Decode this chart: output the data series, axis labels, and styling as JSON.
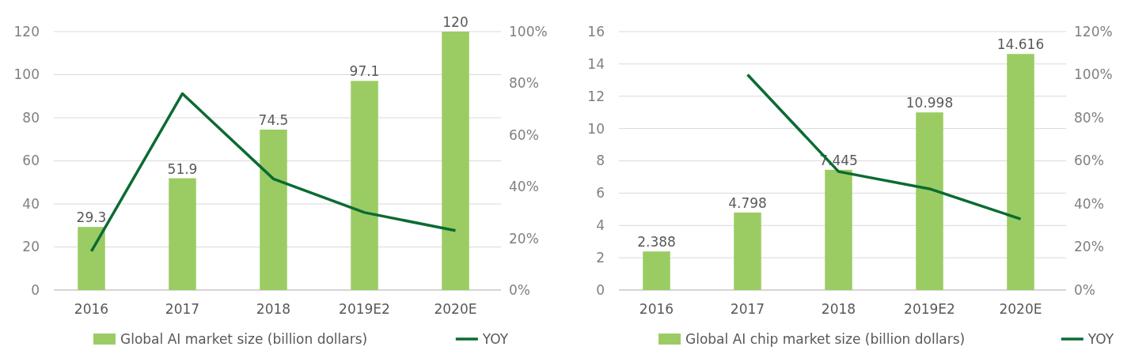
{
  "chart_data": [
    {
      "type": "bar",
      "categories": [
        "2016",
        "2017",
        "2018",
        "2019E2",
        "2020E"
      ],
      "series": [
        {
          "name": "Global AI market size (billion dollars)",
          "color": "#9bcc63",
          "values": [
            29.3,
            51.9,
            74.5,
            97.1,
            120
          ],
          "value_labels": [
            "29.3",
            "51.9",
            "74.5",
            "97.1",
            "120"
          ]
        },
        {
          "name": "YOY",
          "type": "line",
          "axis": "y2",
          "color": "#0b6b33",
          "values": [
            15,
            76,
            43,
            30,
            23
          ]
        }
      ],
      "ylim": [
        0,
        120
      ],
      "yticks": [
        0,
        20,
        40,
        60,
        80,
        100,
        120
      ],
      "y2lim": [
        0,
        100
      ],
      "y2ticks": [
        {
          "value": 0,
          "label": "0%"
        },
        {
          "value": 20,
          "label": "20%"
        },
        {
          "value": 40,
          "label": "40%"
        },
        {
          "value": 60,
          "label": "60%"
        },
        {
          "value": 80,
          "label": "80%"
        },
        {
          "value": 100,
          "label": "100%"
        }
      ],
      "grid": "y",
      "legend": "bottom"
    },
    {
      "type": "bar",
      "categories": [
        "2016",
        "2017",
        "2018",
        "2019E2",
        "2020E"
      ],
      "series": [
        {
          "name": "Global AI chip market size (billion dollars)",
          "color": "#9bcc63",
          "values": [
            2.388,
            4.798,
            7.445,
            10.998,
            14.616
          ],
          "value_labels": [
            "2.388",
            "4.798",
            "7.445",
            "10.998",
            "14.616"
          ]
        },
        {
          "name": "YOY",
          "type": "line",
          "axis": "y2",
          "color": "#0b6b33",
          "values": [
            null,
            100,
            55,
            47,
            33
          ]
        }
      ],
      "ylim": [
        0,
        16
      ],
      "yticks": [
        0,
        2,
        4,
        6,
        8,
        10,
        12,
        14,
        16
      ],
      "y2lim": [
        0,
        120
      ],
      "y2ticks": [
        {
          "value": 0,
          "label": "0%"
        },
        {
          "value": 20,
          "label": "20%"
        },
        {
          "value": 40,
          "label": "40%"
        },
        {
          "value": 60,
          "label": "60%"
        },
        {
          "value": 80,
          "label": "80%"
        },
        {
          "value": 100,
          "label": "100%"
        },
        {
          "value": 120,
          "label": "120%"
        }
      ],
      "grid": "y",
      "legend": "bottom"
    }
  ]
}
